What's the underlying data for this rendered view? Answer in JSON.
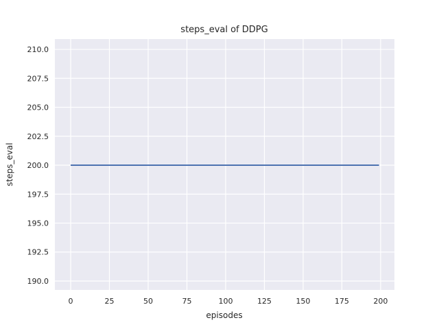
{
  "chart_data": {
    "type": "line",
    "title": "steps_eval of DDPG",
    "xlabel": "episodes",
    "ylabel": "steps_eval",
    "x_ticks": [
      {
        "value": 0,
        "label": "0"
      },
      {
        "value": 25,
        "label": "25"
      },
      {
        "value": 50,
        "label": "50"
      },
      {
        "value": 75,
        "label": "75"
      },
      {
        "value": 100,
        "label": "100"
      },
      {
        "value": 125,
        "label": "125"
      },
      {
        "value": 150,
        "label": "150"
      },
      {
        "value": 175,
        "label": "175"
      },
      {
        "value": 200,
        "label": "200"
      }
    ],
    "y_ticks": [
      {
        "value": 190.0,
        "label": "190.0"
      },
      {
        "value": 192.5,
        "label": "192.5"
      },
      {
        "value": 195.0,
        "label": "195.0"
      },
      {
        "value": 197.5,
        "label": "197.5"
      },
      {
        "value": 200.0,
        "label": "200.0"
      },
      {
        "value": 202.5,
        "label": "202.5"
      },
      {
        "value": 205.0,
        "label": "205.0"
      },
      {
        "value": 207.5,
        "label": "207.5"
      },
      {
        "value": 210.0,
        "label": "210.0"
      }
    ],
    "xlim": [
      -10.2,
      208.9
    ],
    "ylim": [
      189.23,
      210.89
    ],
    "grid": true,
    "legend_position": "none",
    "background_color": "#eaeaf2",
    "grid_color": "#ffffff",
    "figure_background": "#ffffff",
    "text_color": "#262626",
    "series": [
      {
        "name": "DDPG",
        "color": "#4c72b0",
        "line_width": 2,
        "points": [
          [
            0,
            200
          ],
          [
            199,
            200
          ]
        ]
      }
    ]
  }
}
